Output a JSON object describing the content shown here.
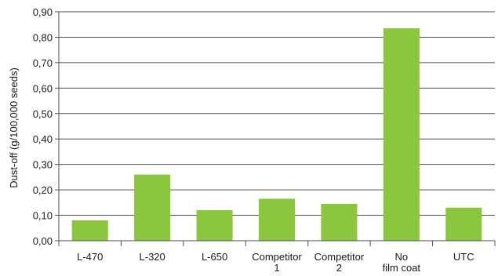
{
  "colors": {
    "bar": "#8cc63f",
    "grid": "#4d4d4d",
    "text": "#1a1a1a"
  },
  "chart_data": {
    "type": "bar",
    "title": "",
    "xlabel": "",
    "ylabel": "Dust-off (g/100,000 seeds)",
    "ylim": [
      0,
      0.9
    ],
    "yticks": [
      "0,00",
      "0,10",
      "0,20",
      "0,30",
      "0,40",
      "0,50",
      "0,60",
      "0,70",
      "0,80",
      "0,90"
    ],
    "grid": true,
    "categories": [
      [
        "L-470"
      ],
      [
        "L-320"
      ],
      [
        "L-650"
      ],
      [
        "Competitor",
        "1"
      ],
      [
        "Competitor",
        "2"
      ],
      [
        "No",
        "film coat"
      ],
      [
        "UTC"
      ]
    ],
    "values": [
      0.08,
      0.26,
      0.12,
      0.165,
      0.145,
      0.835,
      0.13
    ]
  }
}
